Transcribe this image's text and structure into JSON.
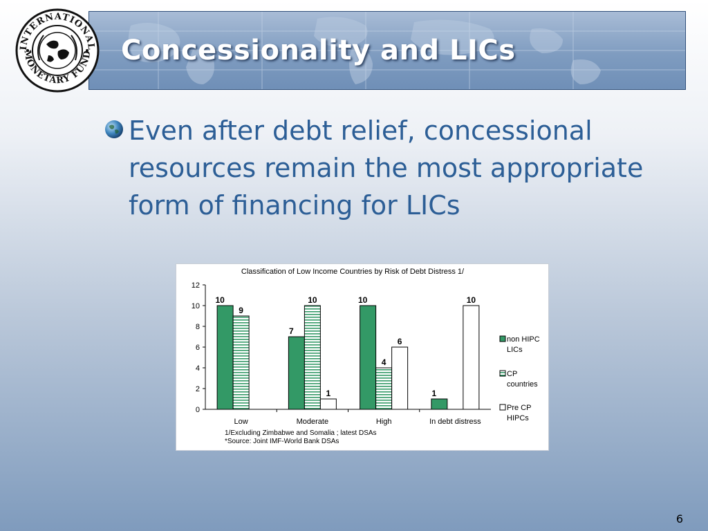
{
  "header": {
    "title": "Concessionality and LICs",
    "logo_text": "INTERNATIONAL MONETARY FUND"
  },
  "bullet": {
    "text": "Even after debt relief, concessional resources remain the most appropriate form of financing for LICs"
  },
  "page_number": "6",
  "colors": {
    "title_text": "#ffffff",
    "bullet_text": "#2c5e96",
    "bar_green": "#339966",
    "banner": "#7f9cc0"
  },
  "chart_data": {
    "type": "bar",
    "title": "Classification of  Low  Income Countries by Risk of Debt Distress 1/",
    "categories": [
      "Low",
      "Moderate",
      "High",
      "In debt distress"
    ],
    "series": [
      {
        "name": "non HIPC LICs",
        "values": [
          10,
          7,
          10,
          1
        ],
        "style": "solid-green"
      },
      {
        "name": "CP countries",
        "values": [
          9,
          10,
          4,
          null
        ],
        "style": "green-stripes"
      },
      {
        "name": "Pre CP HIPCs",
        "values": [
          null,
          1,
          6,
          10
        ],
        "style": "white"
      }
    ],
    "data_labels": [
      [
        "10",
        "7",
        "10",
        "1"
      ],
      [
        "9",
        "10",
        "4",
        ""
      ],
      [
        "",
        "1",
        "6",
        "10"
      ]
    ],
    "legend_lines": [
      [
        "non HIPC",
        "LICs"
      ],
      [
        "CP",
        "countries"
      ],
      [
        "Pre CP",
        "HIPCs"
      ]
    ],
    "ylim": [
      0,
      12
    ],
    "yticks": [
      0,
      2,
      4,
      6,
      8,
      10,
      12
    ],
    "grid": false,
    "legend_position": "right",
    "footnotes": [
      "1/Excluding Zimbabwe and Somalia ; latest DSAs",
      "*Source: Joint IMF-World Bank DSAs"
    ]
  }
}
